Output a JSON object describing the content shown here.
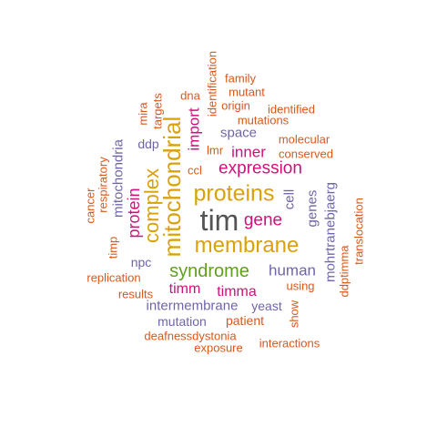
{
  "palette": {
    "grey": "#545454",
    "mustard": "#D9A10A",
    "magenta": "#D2107B",
    "purple": "#6E66A8",
    "green": "#5FA020",
    "orange": "#D9581A"
  },
  "words": {
    "tim": "tim",
    "mitochondrial": "mitochondrial",
    "proteins": "proteins",
    "membrane": "membrane",
    "complex": "complex",
    "syndrome": "syndrome",
    "expression": "expression",
    "protein": "protein",
    "gene": "gene",
    "import": "import",
    "inner": "inner",
    "human": "human",
    "timm": "timm",
    "timma": "timma",
    "intermembrane": "intermembrane",
    "mitochondria": "mitochondria",
    "space": "space",
    "genes": "genes",
    "mohrtranebjaerg": "mohrtranebjaerg",
    "cell": "cell",
    "npc": "npc",
    "mutation": "mutation",
    "yeast": "yeast",
    "ddp": "ddp",
    "lmr": "lmr",
    "ccl": "ccl",
    "mira": "mira",
    "targets": "targets",
    "dna": "dna",
    "identification": "identification",
    "family": "family",
    "mutant": "mutant",
    "origin": "origin",
    "identified": "identified",
    "mutations": "mutations",
    "molecular": "molecular",
    "conserved": "conserved",
    "respiratory": "respiratory",
    "cancer": "cancer",
    "timp": "timp",
    "replication": "replication",
    "results": "results",
    "using": "using",
    "show": "show",
    "patient": "patient",
    "deafnessdystonia": "deafnessdystonia",
    "exposure": "exposure",
    "interactions": "interactions",
    "ddptimma": "ddptimma",
    "translocation": "translocation"
  }
}
